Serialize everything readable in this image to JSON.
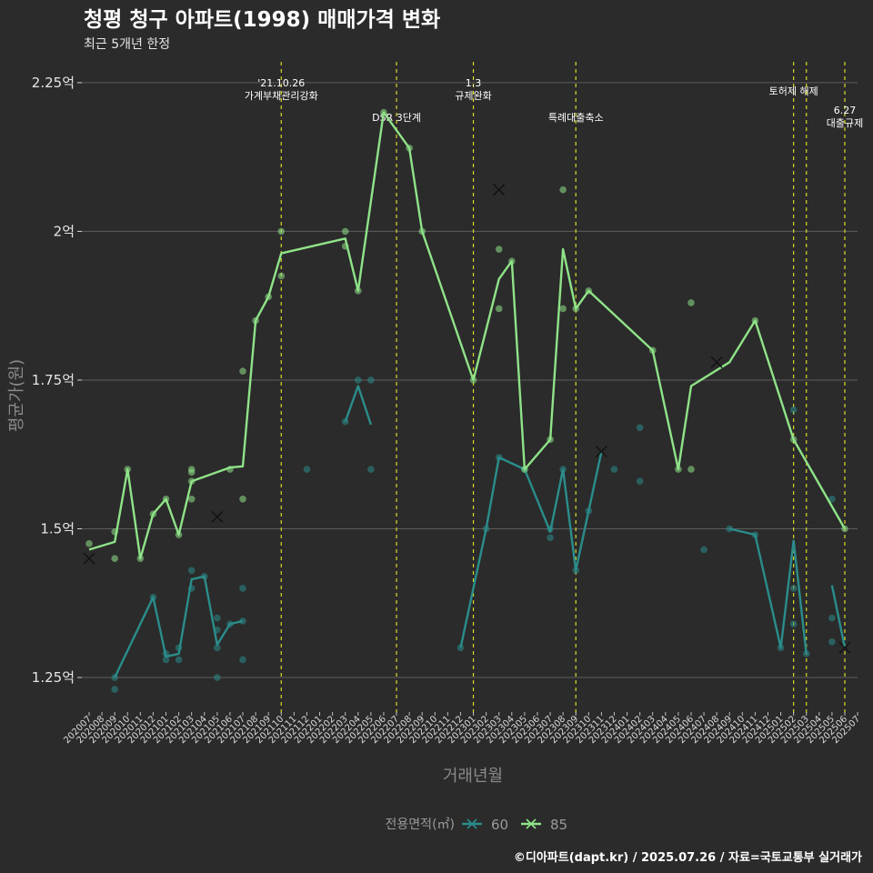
{
  "chart_data": {
    "type": "line",
    "title": "청평 청구 아파트(1998) 매매가격 변화",
    "subtitle": "최근 5개년 한정",
    "xlabel": "거래년월",
    "ylabel": "평균가(원)",
    "caption": "©디아파트(dapt.kr) / 2025.07.26 / 자료=국토교통부 실거래가",
    "y_ticks": [
      {
        "value": 1.25,
        "label": "1.25억"
      },
      {
        "value": 1.5,
        "label": "1.5억"
      },
      {
        "value": 1.75,
        "label": "1.75억"
      },
      {
        "value": 2.0,
        "label": "2억"
      },
      {
        "value": 2.25,
        "label": "2.25억"
      }
    ],
    "ylim": [
      1.195,
      2.285
    ],
    "grid": true,
    "legend": {
      "title": "전용면적(㎡)",
      "placement": "bottom",
      "entries": [
        "60",
        "85"
      ]
    },
    "x_categories": [
      "202007",
      "202008",
      "202009",
      "202010",
      "202011",
      "202012",
      "202101",
      "202102",
      "202103",
      "202104",
      "202105",
      "202106",
      "202107",
      "202108",
      "202109",
      "202110",
      "202111",
      "202112",
      "202201",
      "202202",
      "202203",
      "202204",
      "202205",
      "202206",
      "202207",
      "202208",
      "202209",
      "202210",
      "202211",
      "202212",
      "202301",
      "202302",
      "202303",
      "202304",
      "202305",
      "202306",
      "202307",
      "202308",
      "202309",
      "202310",
      "202311",
      "202312",
      "202401",
      "202402",
      "202403",
      "202404",
      "202405",
      "202406",
      "202407",
      "202408",
      "202409",
      "202410",
      "202411",
      "202412",
      "202501",
      "202502",
      "202503",
      "202504",
      "202505",
      "202506",
      "202507"
    ],
    "events": [
      {
        "x": 15.0,
        "label": "'21.10.26\n가계부채관리강화"
      },
      {
        "x": 24.0,
        "label": "DSR 3단계"
      },
      {
        "x": 30.0,
        "label": "1.3\n규제완화"
      },
      {
        "x": 38.0,
        "label": "특례대출축소"
      },
      {
        "x": 55.0,
        "label": "토허제 해제"
      },
      {
        "x": 56.0,
        "label": ""
      },
      {
        "x": 59.0,
        "label": "6.27\n대출규제"
      }
    ],
    "series": [
      {
        "name": "60",
        "color": "#2a8d8b",
        "line": [
          [
            [
              2,
              1.25
            ],
            [
              5,
              1.385
            ],
            [
              6,
              1.285
            ],
            [
              7,
              1.29
            ],
            [
              8,
              1.415
            ],
            [
              9,
              1.42
            ],
            [
              10,
              1.305
            ],
            [
              11,
              1.34
            ],
            [
              12,
              1.345
            ]
          ],
          [
            [
              20,
              1.68
            ],
            [
              21,
              1.74
            ],
            [
              22,
              1.675
            ]
          ],
          [
            [
              29,
              1.3
            ],
            [
              31,
              1.5
            ],
            [
              32,
              1.62
            ],
            [
              34,
              1.6
            ],
            [
              36,
              1.495
            ],
            [
              37,
              1.6
            ],
            [
              38,
              1.43
            ],
            [
              39,
              1.53
            ],
            [
              40,
              1.63
            ]
          ],
          [
            [
              50,
              1.5
            ],
            [
              52,
              1.49
            ],
            [
              54,
              1.3
            ],
            [
              55,
              1.48
            ],
            [
              56,
              1.29
            ]
          ],
          [
            [
              58,
              1.405
            ],
            [
              59,
              1.3
            ]
          ]
        ],
        "points": [
          [
            2,
            1.25
          ],
          [
            2,
            1.23
          ],
          [
            5,
            1.385
          ],
          [
            6,
            1.28
          ],
          [
            6,
            1.29
          ],
          [
            7,
            1.28
          ],
          [
            7,
            1.3
          ],
          [
            8,
            1.43
          ],
          [
            8,
            1.4
          ],
          [
            9,
            1.42
          ],
          [
            10,
            1.35
          ],
          [
            10,
            1.33
          ],
          [
            10,
            1.3
          ],
          [
            10,
            1.25
          ],
          [
            11,
            1.34
          ],
          [
            12,
            1.345
          ],
          [
            12,
            1.4
          ],
          [
            12,
            1.28
          ],
          [
            17,
            1.6
          ],
          [
            20,
            1.68
          ],
          [
            21,
            1.75
          ],
          [
            22,
            1.75
          ],
          [
            22,
            1.6
          ],
          [
            29,
            1.3
          ],
          [
            31,
            1.5
          ],
          [
            32,
            1.62
          ],
          [
            34,
            1.6
          ],
          [
            36,
            1.5
          ],
          [
            36,
            1.485
          ],
          [
            37,
            1.6
          ],
          [
            38,
            1.43
          ],
          [
            39,
            1.53
          ],
          [
            41,
            1.6
          ],
          [
            43,
            1.67
          ],
          [
            43,
            1.58
          ],
          [
            48,
            1.465
          ],
          [
            50,
            1.5
          ],
          [
            52,
            1.49
          ],
          [
            54,
            1.3
          ],
          [
            55,
            1.7
          ],
          [
            55,
            1.4
          ],
          [
            55,
            1.34
          ],
          [
            56,
            1.29
          ],
          [
            58,
            1.35
          ],
          [
            58,
            1.31
          ],
          [
            58,
            1.55
          ]
        ],
        "cross": [
          [
            40,
            1.63
          ],
          [
            59,
            1.3
          ]
        ]
      },
      {
        "name": "85",
        "color": "#8fe388",
        "line": [
          [
            [
              0,
              1.465
            ],
            [
              2,
              1.478
            ],
            [
              3,
              1.6
            ],
            [
              4,
              1.45
            ],
            [
              5,
              1.525
            ],
            [
              6,
              1.55
            ],
            [
              7,
              1.49
            ],
            [
              8,
              1.58
            ],
            [
              11,
              1.603
            ],
            [
              12,
              1.605
            ],
            [
              13,
              1.85
            ],
            [
              14,
              1.89
            ],
            [
              15,
              1.963
            ],
            [
              20,
              1.988
            ],
            [
              21,
              1.9
            ],
            [
              23,
              2.2
            ],
            [
              25,
              2.14
            ],
            [
              26,
              2.0
            ],
            [
              30,
              1.75
            ],
            [
              32,
              1.92
            ],
            [
              33,
              1.95
            ],
            [
              34,
              1.6
            ],
            [
              36,
              1.65
            ],
            [
              37,
              1.97
            ],
            [
              38,
              1.87
            ],
            [
              39,
              1.9
            ],
            [
              44,
              1.8
            ],
            [
              46,
              1.6
            ],
            [
              47,
              1.74
            ],
            [
              50,
              1.78
            ],
            [
              52,
              1.85
            ],
            [
              55,
              1.65
            ],
            [
              59,
              1.5
            ]
          ]
        ],
        "points": [
          [
            0,
            1.475
          ],
          [
            2,
            1.495
          ],
          [
            2,
            1.45
          ],
          [
            3,
            1.6
          ],
          [
            4,
            1.45
          ],
          [
            5,
            1.525
          ],
          [
            6,
            1.55
          ],
          [
            7,
            1.49
          ],
          [
            8,
            1.6
          ],
          [
            8,
            1.595
          ],
          [
            8,
            1.58
          ],
          [
            8,
            1.55
          ],
          [
            11,
            1.6
          ],
          [
            12,
            1.765
          ],
          [
            12,
            1.55
          ],
          [
            13,
            1.85
          ],
          [
            14,
            1.89
          ],
          [
            15,
            2.0
          ],
          [
            15,
            1.925
          ],
          [
            20,
            2.0
          ],
          [
            20,
            1.975
          ],
          [
            21,
            1.9
          ],
          [
            23,
            2.2
          ],
          [
            25,
            2.14
          ],
          [
            26,
            2.0
          ],
          [
            30,
            1.75
          ],
          [
            32,
            1.97
          ],
          [
            32,
            1.87
          ],
          [
            33,
            1.95
          ],
          [
            34,
            1.6
          ],
          [
            36,
            1.65
          ],
          [
            37,
            2.07
          ],
          [
            37,
            1.87
          ],
          [
            38,
            1.87
          ],
          [
            39,
            1.9
          ],
          [
            44,
            1.8
          ],
          [
            46,
            1.6
          ],
          [
            47,
            1.88
          ],
          [
            47,
            1.6
          ],
          [
            52,
            1.85
          ],
          [
            55,
            1.65
          ],
          [
            59,
            1.5
          ]
        ],
        "cross": [
          [
            0,
            1.45
          ],
          [
            10,
            1.52
          ],
          [
            32,
            2.07
          ],
          [
            49,
            1.78
          ]
        ]
      }
    ]
  }
}
